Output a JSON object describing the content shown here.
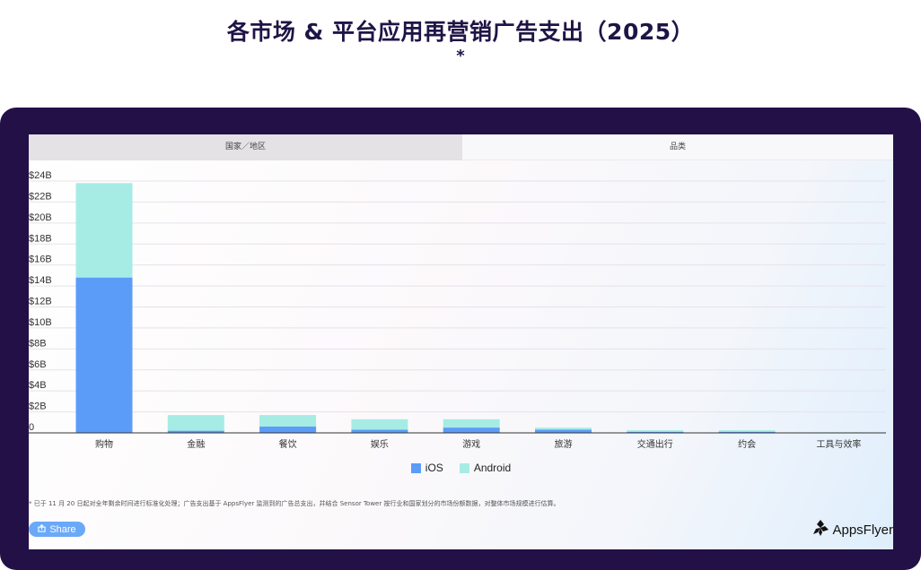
{
  "page": {
    "title": "各市场 & 平台应用再营销广告支出（2025）",
    "title_marker": "*"
  },
  "tabs": [
    {
      "label": "国家／地区",
      "active": false
    },
    {
      "label": "品类",
      "active": true
    }
  ],
  "colors": {
    "frame": "#221047",
    "ios": "#5b9cf8",
    "android": "#a6ece4",
    "share_button": "#6aa9f8"
  },
  "chart_data": {
    "type": "bar",
    "stacked": true,
    "categories": [
      "购物",
      "金融",
      "餐饮",
      "娱乐",
      "游戏",
      "旅游",
      "交通出行",
      "约会",
      "工具与效率"
    ],
    "series": [
      {
        "name": "iOS",
        "values": [
          14.8,
          0.2,
          0.6,
          0.3,
          0.5,
          0.3,
          0.1,
          0.1,
          0.0
        ]
      },
      {
        "name": "Android",
        "values": [
          9.0,
          1.5,
          1.1,
          1.0,
          0.8,
          0.2,
          0.15,
          0.15,
          0.05
        ]
      }
    ],
    "yticks": [
      {
        "v": 0,
        "label": "0"
      },
      {
        "v": 2,
        "label": "$2B"
      },
      {
        "v": 4,
        "label": "$4B"
      },
      {
        "v": 6,
        "label": "$6B"
      },
      {
        "v": 8,
        "label": "$8B"
      },
      {
        "v": 10,
        "label": "$10B"
      },
      {
        "v": 12,
        "label": "$12B"
      },
      {
        "v": 14,
        "label": "$14B"
      },
      {
        "v": 16,
        "label": "$16B"
      },
      {
        "v": 18,
        "label": "$18B"
      },
      {
        "v": 20,
        "label": "$20B"
      },
      {
        "v": 22,
        "label": "$22B"
      },
      {
        "v": 24,
        "label": "$24B"
      }
    ],
    "ylim": [
      0,
      24
    ],
    "grid": true,
    "legend_position": "bottom-center"
  },
  "legend": {
    "ios": "iOS",
    "android": "Android"
  },
  "footnote": "* 已于 11 月 20 日起对全年剩余时间进行标准化处理；广告支出基于 AppsFlyer 监测到的广告总支出，并结合 Sensor Tower 按行业和国家划分的市场份额数据，对整体市场规模进行估算。",
  "share": {
    "icon": "share-icon",
    "label": "Share"
  },
  "brand": {
    "name": "AppsFlyer",
    "icon": "appsflyer-logo-icon"
  }
}
